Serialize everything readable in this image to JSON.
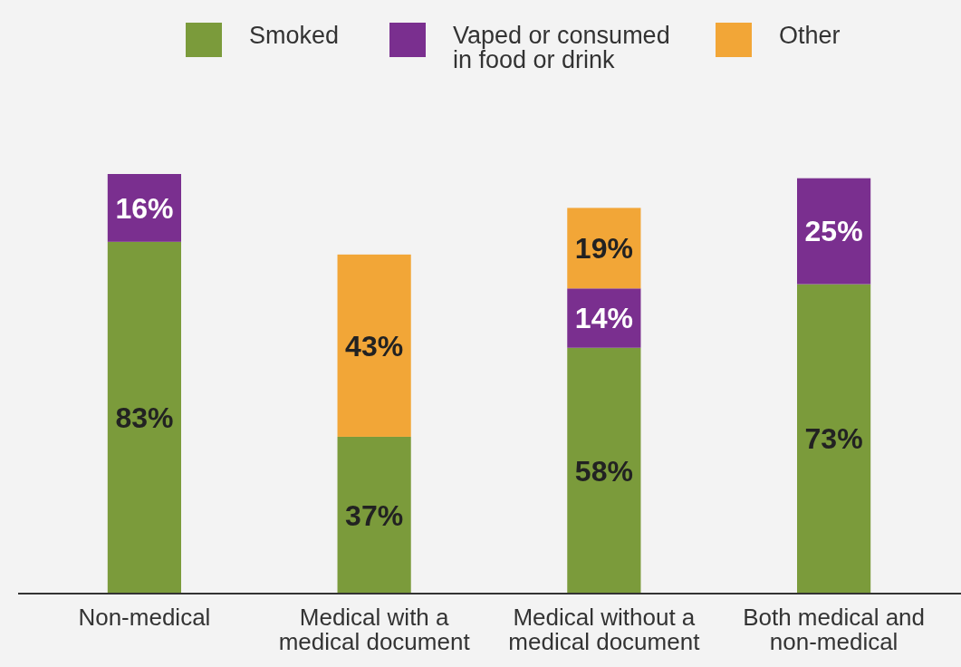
{
  "chart_data": {
    "type": "bar",
    "stacked": true,
    "legend": "top",
    "categories": [
      "Non-medical",
      "Medical with a medical document",
      "Medical without a medical document",
      "Both medical and non-medical"
    ],
    "series": [
      {
        "name": "Smoked",
        "color": "#7b9b3b",
        "values": [
          83,
          37,
          58,
          73
        ],
        "value_labels": [
          "83%",
          "37%",
          "58%",
          "73%"
        ]
      },
      {
        "name": "Vaped or consumed in food or drink",
        "color": "#7a2f8f",
        "values": [
          16,
          null,
          14,
          25
        ],
        "value_labels": [
          "16%",
          null,
          "14%",
          "25%"
        ]
      },
      {
        "name": "Other",
        "color": "#f2a637",
        "values": [
          null,
          43,
          19,
          null
        ],
        "value_labels": [
          null,
          "43%",
          "19%",
          null
        ]
      }
    ]
  }
}
